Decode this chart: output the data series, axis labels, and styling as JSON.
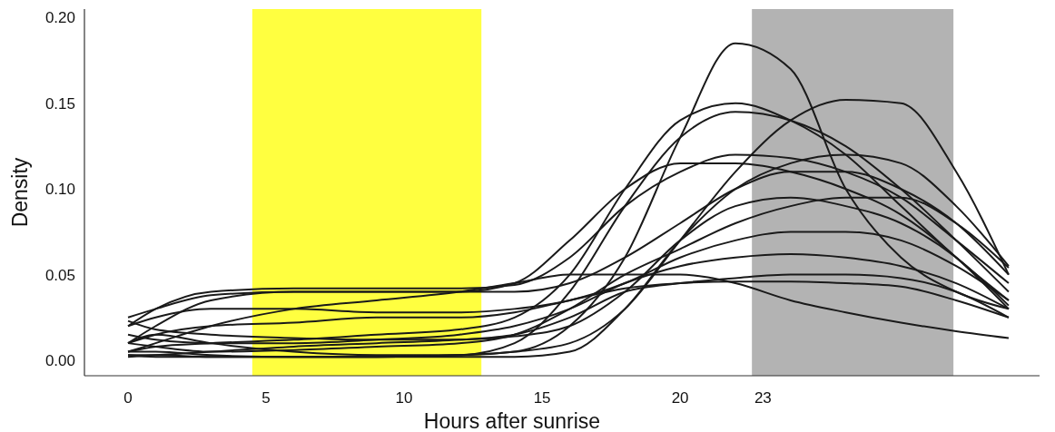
{
  "chart_data": {
    "type": "line",
    "xlabel": "Hours after sunrise",
    "ylabel": "Density",
    "xlim": [
      -1.58,
      33.02
    ],
    "ylim": [
      -0.009,
      0.205
    ],
    "xticks": [
      0,
      5,
      10,
      15,
      20,
      23
    ],
    "yticks": [
      {
        "value": 0,
        "label": "0.00"
      },
      {
        "value": 0.05,
        "label": "0.05"
      },
      {
        "value": 0.1,
        "label": "0.10"
      },
      {
        "value": 0.15,
        "label": "0.15"
      },
      {
        "value": 0.2,
        "label": "0.20"
      }
    ],
    "marker": "none",
    "line_style": "solid",
    "bands": [
      {
        "axis": "x",
        "from": 4.5,
        "to": 12.8,
        "color": "#ffff40"
      },
      {
        "axis": "x",
        "from": 22.6,
        "to": 29.9,
        "color": "#b3b3b3"
      }
    ],
    "x": [
      0,
      1,
      3,
      6,
      9,
      12,
      14,
      16,
      18,
      20,
      22,
      24,
      26,
      28,
      30,
      31.9
    ],
    "series": [
      {
        "color": "#1a1a1a",
        "values": [
          0.01,
          0.015,
          0.01,
          0.005,
          0.003,
          0.003,
          0.005,
          0.02,
          0.06,
          0.13,
          0.185,
          0.17,
          0.1,
          0.06,
          0.04,
          0.03
        ]
      },
      {
        "color": "#1a1a1a",
        "values": [
          0.005,
          0.01,
          0.02,
          0.03,
          0.035,
          0.04,
          0.045,
          0.05,
          0.05,
          0.05,
          0.045,
          0.035,
          0.028,
          0.022,
          0.017,
          0.013
        ]
      },
      {
        "color": "#1a1a1a",
        "values": [
          0.003,
          0.003,
          0.002,
          0.002,
          0.002,
          0.003,
          0.005,
          0.01,
          0.03,
          0.07,
          0.11,
          0.14,
          0.152,
          0.15,
          0.11,
          0.05
        ]
      },
      {
        "color": "#1a1a1a",
        "values": [
          0.02,
          0.03,
          0.04,
          0.042,
          0.042,
          0.042,
          0.044,
          0.06,
          0.09,
          0.11,
          0.12,
          0.118,
          0.11,
          0.095,
          0.07,
          0.045
        ]
      },
      {
        "color": "#1a1a1a",
        "values": [
          0.01,
          0.02,
          0.035,
          0.04,
          0.04,
          0.04,
          0.04,
          0.045,
          0.06,
          0.08,
          0.1,
          0.11,
          0.11,
          0.1,
          0.08,
          0.05
        ]
      },
      {
        "color": "#1a1a1a",
        "values": [
          0.005,
          0.005,
          0.003,
          0.002,
          0.002,
          0.003,
          0.01,
          0.04,
          0.09,
          0.13,
          0.145,
          0.14,
          0.125,
          0.1,
          0.07,
          0.04
        ]
      },
      {
        "color": "#1a1a1a",
        "values": [
          0.02,
          0.025,
          0.03,
          0.03,
          0.028,
          0.028,
          0.03,
          0.035,
          0.045,
          0.06,
          0.07,
          0.075,
          0.075,
          0.07,
          0.055,
          0.035
        ]
      },
      {
        "color": "#1a1a1a",
        "values": [
          0.015,
          0.012,
          0.01,
          0.01,
          0.012,
          0.015,
          0.02,
          0.03,
          0.045,
          0.055,
          0.06,
          0.062,
          0.06,
          0.055,
          0.045,
          0.03
        ]
      },
      {
        "color": "#1a1a1a",
        "values": [
          0.003,
          0.002,
          0.002,
          0.002,
          0.002,
          0.002,
          0.002,
          0.005,
          0.03,
          0.07,
          0.1,
          0.115,
          0.12,
          0.115,
          0.09,
          0.055
        ]
      },
      {
        "color": "#1a1a1a",
        "values": [
          0.025,
          0.03,
          0.038,
          0.04,
          0.04,
          0.04,
          0.045,
          0.07,
          0.1,
          0.115,
          0.115,
          0.11,
          0.1,
          0.085,
          0.06,
          0.03
        ]
      },
      {
        "color": "#1a1a1a",
        "values": [
          0.01,
          0.015,
          0.02,
          0.022,
          0.025,
          0.025,
          0.028,
          0.035,
          0.042,
          0.045,
          0.046,
          0.046,
          0.045,
          0.043,
          0.035,
          0.025
        ]
      },
      {
        "color": "#1a1a1a",
        "values": [
          0.023,
          0.018,
          0.015,
          0.013,
          0.012,
          0.012,
          0.014,
          0.02,
          0.04,
          0.07,
          0.09,
          0.095,
          0.09,
          0.08,
          0.06,
          0.032
        ]
      },
      {
        "color": "#1a1a1a",
        "values": [
          0.005,
          0.008,
          0.01,
          0.012,
          0.015,
          0.018,
          0.025,
          0.05,
          0.1,
          0.14,
          0.15,
          0.14,
          0.12,
          0.09,
          0.06,
          0.035
        ]
      },
      {
        "color": "#1a1a1a",
        "values": [
          0.01,
          0.008,
          0.005,
          0.006,
          0.008,
          0.01,
          0.015,
          0.03,
          0.05,
          0.065,
          0.08,
          0.09,
          0.095,
          0.095,
          0.08,
          0.054
        ]
      },
      {
        "color": "#1a1a1a",
        "values": [
          0.002,
          0.003,
          0.005,
          0.008,
          0.01,
          0.012,
          0.015,
          0.025,
          0.04,
          0.045,
          0.048,
          0.05,
          0.05,
          0.048,
          0.04,
          0.025
        ]
      }
    ]
  }
}
